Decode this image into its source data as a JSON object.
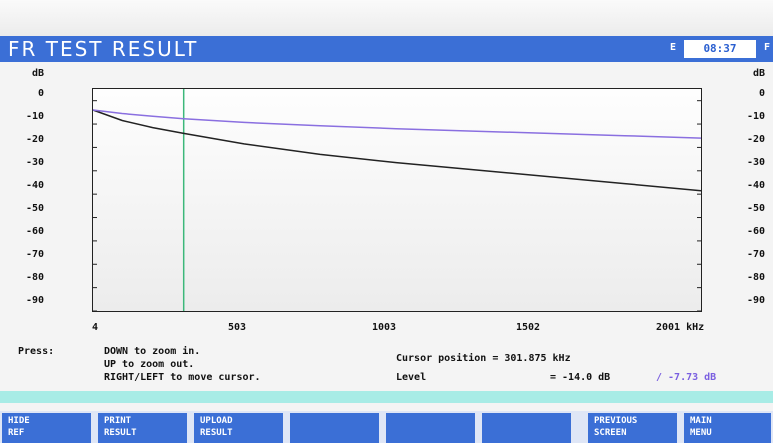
{
  "window": {
    "title": "FR TEST RESULT",
    "indicator_left": "E",
    "clock": "08:37",
    "indicator_right": "F"
  },
  "axes": {
    "y_unit": "dB",
    "y_ticks": [
      "0",
      "-10",
      "-20",
      "-30",
      "-40",
      "-50",
      "-60",
      "-70",
      "-80",
      "-90"
    ],
    "x_ticks": [
      "4",
      "503",
      "1003",
      "1502",
      "2001 kHz"
    ]
  },
  "chart_data": {
    "type": "line",
    "ylabel": "dB",
    "xlabel": "kHz",
    "xlim": [
      4,
      2001
    ],
    "ylim": [
      -90,
      5
    ],
    "grid": false,
    "cursor_x": 301.875,
    "series": [
      {
        "color": "#222222",
        "x": [
          4,
          100,
          200,
          301.875,
          500,
          750,
          1000,
          1250,
          1500,
          1750,
          2001
        ],
        "y": [
          -4,
          -8.5,
          -11.5,
          -14.0,
          -18.5,
          -23,
          -26.5,
          -29.5,
          -32.5,
          -35.5,
          -38.5
        ]
      },
      {
        "color": "#8a6fe0",
        "x": [
          4,
          100,
          200,
          301.875,
          500,
          750,
          1000,
          1250,
          1500,
          1750,
          2001
        ],
        "y": [
          -4,
          -5.5,
          -6.7,
          -7.73,
          -9.3,
          -10.7,
          -12,
          -13,
          -14,
          -15,
          -16
        ]
      }
    ]
  },
  "info": {
    "press_label": "Press:",
    "line1": "DOWN to zoom in.",
    "line2": "UP to zoom out.",
    "line3": "RIGHT/LEFT to move cursor.",
    "cursor_position": "Cursor position = 301.875 kHz",
    "level_label": "Level",
    "level_value": "= -14.0 dB",
    "level_ref": "/ -7.73 dB"
  },
  "softkeys": [
    {
      "line1": "HIDE",
      "line2": "REF"
    },
    {
      "line1": "PRINT",
      "line2": "RESULT"
    },
    {
      "line1": "UPLOAD",
      "line2": "RESULT"
    },
    {
      "line1": "",
      "line2": ""
    },
    {
      "line1": "",
      "line2": ""
    },
    {
      "line1": "",
      "line2": ""
    },
    {
      "line1": "PREVIOUS",
      "line2": "SCREEN"
    },
    {
      "line1": "MAIN",
      "line2": "MENU"
    }
  ]
}
